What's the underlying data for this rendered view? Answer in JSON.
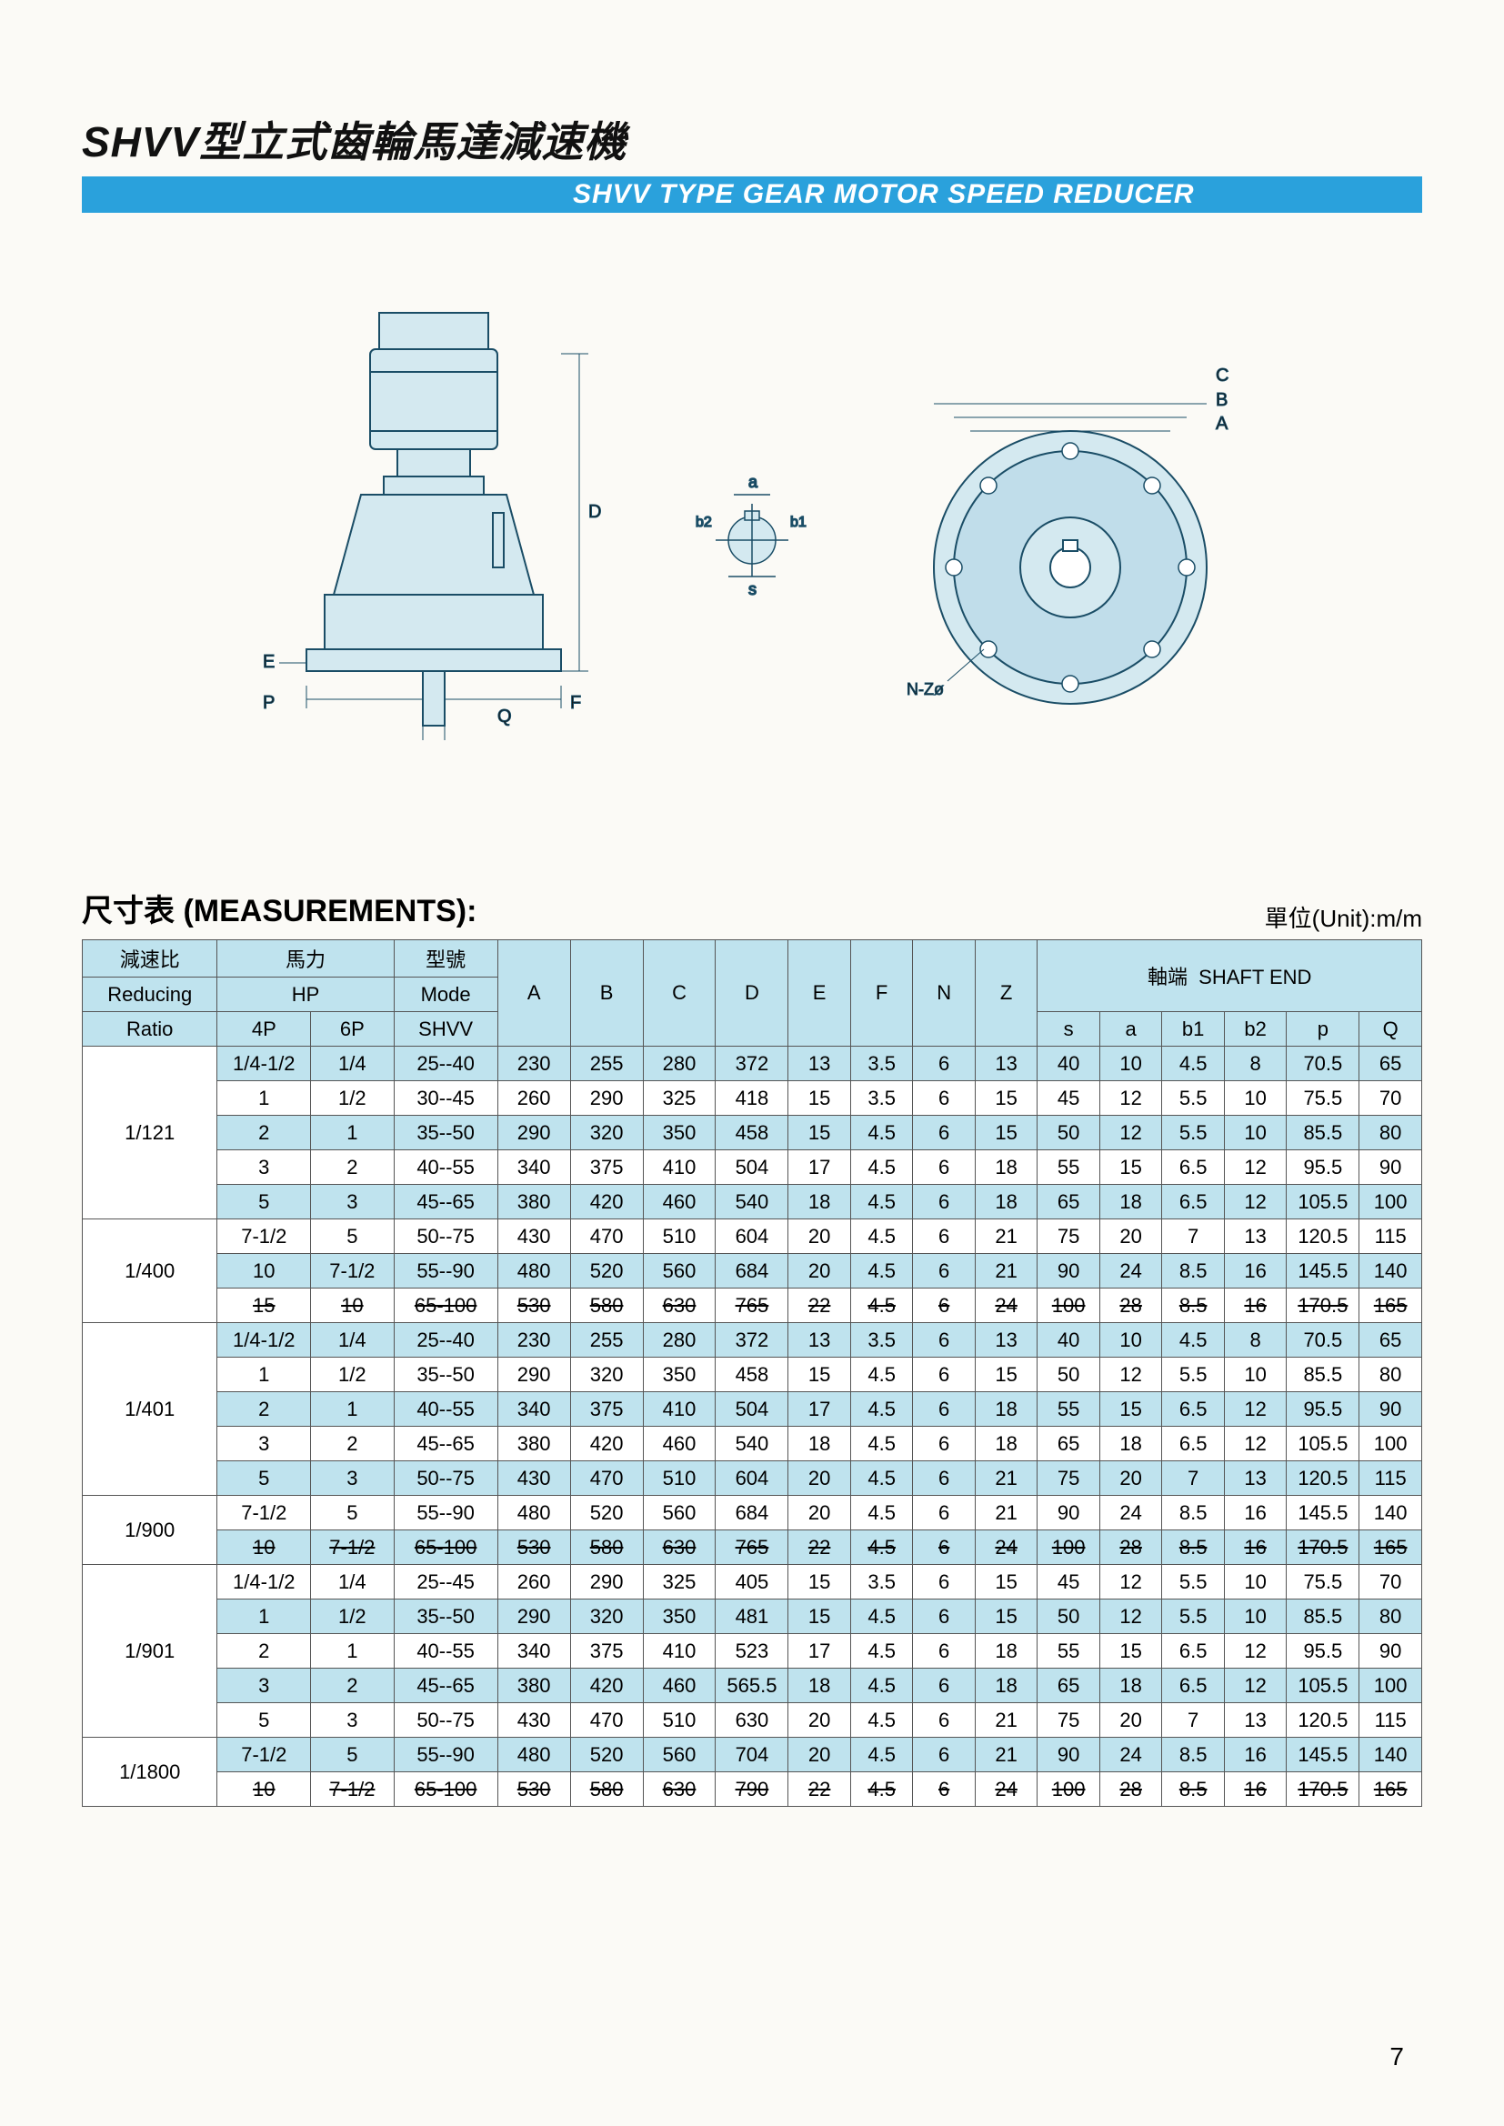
{
  "title_cn": "SHVV型立式齒輪馬達減速機",
  "title_en": "SHVV TYPE GEAR MOTOR SPEED REDUCER",
  "section_title": "尺寸表 (MEASUREMENTS):",
  "unit_label": "單位(Unit):m/m",
  "page_number": "7",
  "colors": {
    "accent": "#2aa1dc",
    "header_bg": "#bfe3ee",
    "diagram_fill": "#d4e9f0",
    "diagram_stroke": "#1a4d66"
  },
  "diagram_labels": [
    "C",
    "B",
    "A",
    "D",
    "E",
    "F",
    "P",
    "Q",
    "a",
    "b1",
    "b2",
    "s",
    "N-Zø"
  ],
  "headers": {
    "ratio_cn": "減速比",
    "ratio_en": "Reducing",
    "ratio_row3": "Ratio",
    "hp_cn": "馬力",
    "hp_en": "HP",
    "hp_4p": "4P",
    "hp_6p": "6P",
    "mode_cn": "型號",
    "mode_en": "Mode",
    "mode_row3": "SHVV",
    "dims": [
      "A",
      "B",
      "C",
      "D",
      "E",
      "F",
      "N",
      "Z"
    ],
    "shaft_cn": "軸端",
    "shaft_en": "SHAFT END",
    "shaft_cols": [
      "s",
      "a",
      "b1",
      "b2",
      "p",
      "Q"
    ]
  },
  "groups": [
    {
      "ratio": "1/121",
      "ratio_rowspan": 3,
      "rows": [
        {
          "shade": true,
          "struck": false,
          "cells": [
            "1/4-1/2",
            "1/4",
            "25--40",
            "230",
            "255",
            "280",
            "372",
            "13",
            "3.5",
            "6",
            "13",
            "40",
            "10",
            "4.5",
            "8",
            "70.5",
            "65"
          ]
        },
        {
          "shade": false,
          "struck": false,
          "cells": [
            "1",
            "1/2",
            "30--45",
            "260",
            "290",
            "325",
            "418",
            "15",
            "3.5",
            "6",
            "15",
            "45",
            "12",
            "5.5",
            "10",
            "75.5",
            "70"
          ]
        },
        {
          "shade": true,
          "struck": false,
          "cells": [
            "2",
            "1",
            "35--50",
            "290",
            "320",
            "350",
            "458",
            "15",
            "4.5",
            "6",
            "15",
            "50",
            "12",
            "5.5",
            "10",
            "85.5",
            "80"
          ]
        }
      ]
    },
    {
      "ratio": "",
      "ratio_rowspan": 0,
      "rows": [
        {
          "shade": false,
          "struck": false,
          "cells": [
            "3",
            "2",
            "40--55",
            "340",
            "375",
            "410",
            "504",
            "17",
            "4.5",
            "6",
            "18",
            "55",
            "15",
            "6.5",
            "12",
            "95.5",
            "90"
          ]
        },
        {
          "shade": true,
          "struck": false,
          "cells": [
            "5",
            "3",
            "45--65",
            "380",
            "420",
            "460",
            "540",
            "18",
            "4.5",
            "6",
            "18",
            "65",
            "18",
            "6.5",
            "12",
            "105.5",
            "100"
          ]
        }
      ]
    },
    {
      "ratio": "1/400",
      "ratio_rowspan": 3,
      "rows": [
        {
          "shade": false,
          "struck": false,
          "cells": [
            "7-1/2",
            "5",
            "50--75",
            "430",
            "470",
            "510",
            "604",
            "20",
            "4.5",
            "6",
            "21",
            "75",
            "20",
            "7",
            "13",
            "120.5",
            "115"
          ]
        },
        {
          "shade": true,
          "struck": false,
          "cells": [
            "10",
            "7-1/2",
            "55--90",
            "480",
            "520",
            "560",
            "684",
            "20",
            "4.5",
            "6",
            "21",
            "90",
            "24",
            "8.5",
            "16",
            "145.5",
            "140"
          ]
        },
        {
          "shade": false,
          "struck": true,
          "cells": [
            "15",
            "10",
            "65-100",
            "530",
            "580",
            "630",
            "765",
            "22",
            "4.5",
            "6",
            "24",
            "100",
            "28",
            "8.5",
            "16",
            "170.5",
            "165"
          ]
        }
      ]
    },
    {
      "ratio": "1/401",
      "ratio_rowspan": 3,
      "rows": [
        {
          "shade": true,
          "struck": false,
          "cells": [
            "1/4-1/2",
            "1/4",
            "25--40",
            "230",
            "255",
            "280",
            "372",
            "13",
            "3.5",
            "6",
            "13",
            "40",
            "10",
            "4.5",
            "8",
            "70.5",
            "65"
          ]
        },
        {
          "shade": false,
          "struck": false,
          "cells": [
            "1",
            "1/2",
            "35--50",
            "290",
            "320",
            "350",
            "458",
            "15",
            "4.5",
            "6",
            "15",
            "50",
            "12",
            "5.5",
            "10",
            "85.5",
            "80"
          ]
        },
        {
          "shade": true,
          "struck": false,
          "cells": [
            "2",
            "1",
            "40--55",
            "340",
            "375",
            "410",
            "504",
            "17",
            "4.5",
            "6",
            "18",
            "55",
            "15",
            "6.5",
            "12",
            "95.5",
            "90"
          ]
        }
      ]
    },
    {
      "ratio": "",
      "ratio_rowspan": 0,
      "rows": [
        {
          "shade": false,
          "struck": false,
          "cells": [
            "3",
            "2",
            "45--65",
            "380",
            "420",
            "460",
            "540",
            "18",
            "4.5",
            "6",
            "18",
            "65",
            "18",
            "6.5",
            "12",
            "105.5",
            "100"
          ]
        },
        {
          "shade": true,
          "struck": false,
          "cells": [
            "5",
            "3",
            "50--75",
            "430",
            "470",
            "510",
            "604",
            "20",
            "4.5",
            "6",
            "21",
            "75",
            "20",
            "7",
            "13",
            "120.5",
            "115"
          ]
        }
      ]
    },
    {
      "ratio": "1/900",
      "ratio_rowspan": 2,
      "rows": [
        {
          "shade": false,
          "struck": false,
          "cells": [
            "7-1/2",
            "5",
            "55--90",
            "480",
            "520",
            "560",
            "684",
            "20",
            "4.5",
            "6",
            "21",
            "90",
            "24",
            "8.5",
            "16",
            "145.5",
            "140"
          ]
        },
        {
          "shade": true,
          "struck": true,
          "cells": [
            "10",
            "7-1/2",
            "65-100",
            "530",
            "580",
            "630",
            "765",
            "22",
            "4.5",
            "6",
            "24",
            "100",
            "28",
            "8.5",
            "16",
            "170.5",
            "165"
          ]
        }
      ]
    },
    {
      "ratio": "1/901",
      "ratio_rowspan": 3,
      "rows": [
        {
          "shade": false,
          "struck": false,
          "cells": [
            "1/4-1/2",
            "1/4",
            "25--45",
            "260",
            "290",
            "325",
            "405",
            "15",
            "3.5",
            "6",
            "15",
            "45",
            "12",
            "5.5",
            "10",
            "75.5",
            "70"
          ]
        },
        {
          "shade": true,
          "struck": false,
          "cells": [
            "1",
            "1/2",
            "35--50",
            "290",
            "320",
            "350",
            "481",
            "15",
            "4.5",
            "6",
            "15",
            "50",
            "12",
            "5.5",
            "10",
            "85.5",
            "80"
          ]
        },
        {
          "shade": false,
          "struck": false,
          "cells": [
            "2",
            "1",
            "40--55",
            "340",
            "375",
            "410",
            "523",
            "17",
            "4.5",
            "6",
            "18",
            "55",
            "15",
            "6.5",
            "12",
            "95.5",
            "90"
          ]
        }
      ]
    },
    {
      "ratio": "",
      "ratio_rowspan": 0,
      "rows": [
        {
          "shade": true,
          "struck": false,
          "cells": [
            "3",
            "2",
            "45--65",
            "380",
            "420",
            "460",
            "565.5",
            "18",
            "4.5",
            "6",
            "18",
            "65",
            "18",
            "6.5",
            "12",
            "105.5",
            "100"
          ]
        },
        {
          "shade": false,
          "struck": false,
          "cells": [
            "5",
            "3",
            "50--75",
            "430",
            "470",
            "510",
            "630",
            "20",
            "4.5",
            "6",
            "21",
            "75",
            "20",
            "7",
            "13",
            "120.5",
            "115"
          ]
        }
      ]
    },
    {
      "ratio": "1/1800",
      "ratio_rowspan": 2,
      "rows": [
        {
          "shade": true,
          "struck": false,
          "cells": [
            "7-1/2",
            "5",
            "55--90",
            "480",
            "520",
            "560",
            "704",
            "20",
            "4.5",
            "6",
            "21",
            "90",
            "24",
            "8.5",
            "16",
            "145.5",
            "140"
          ]
        },
        {
          "shade": false,
          "struck": true,
          "cells": [
            "10",
            "7-1/2",
            "65-100",
            "530",
            "580",
            "630",
            "790",
            "22",
            "4.5",
            "6",
            "24",
            "100",
            "28",
            "8.5",
            "16",
            "170.5",
            "165"
          ]
        }
      ]
    }
  ]
}
